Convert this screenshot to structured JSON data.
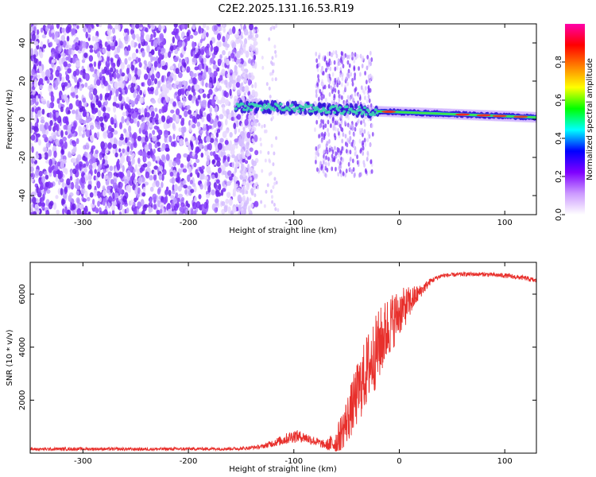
{
  "title": "C2E2.2025.131.16.53.R19",
  "colors": {
    "scatter_purple": "#7b2ff7",
    "snr_line": "#e8302c",
    "frame": "#000000"
  },
  "chart_data": [
    {
      "type": "heatmap",
      "xlabel": "Height of straight line (km)",
      "ylabel": "Frequency (Hz)",
      "xlim": [
        -350,
        130
      ],
      "ylim": [
        -50,
        50
      ],
      "x_ticks": [
        -300,
        -200,
        -100,
        0,
        100
      ],
      "x_tick_labels": [
        "-300",
        "-200",
        "-100",
        "0",
        "100"
      ],
      "y_ticks": [
        -40,
        -20,
        0,
        20,
        40
      ],
      "y_tick_labels": [
        "-40",
        "-20",
        "0",
        "20",
        "40"
      ],
      "colorbar": {
        "label": "Normalized spectral amplitude",
        "range": [
          0,
          1
        ],
        "ticks": [
          0.0,
          0.2,
          0.4,
          0.6,
          0.8
        ],
        "tick_labels": [
          "0.0",
          "0.2",
          "0.4",
          "0.6",
          "0.8"
        ],
        "colors": [
          "#ffffff",
          "#cc99ff",
          "#7f00ff",
          "#0000ff",
          "#00ffff",
          "#00ff00",
          "#ffff00",
          "#ff8000",
          "#ff0000",
          "#ff00aa"
        ]
      },
      "regions": [
        {
          "name": "noise_scatter",
          "x_range": [
            -350,
            -150
          ],
          "freq_range": [
            -50,
            50
          ],
          "amplitude": 0.1
        },
        {
          "name": "signal_track",
          "x_range": [
            -155,
            130
          ],
          "center_freq_start": 7,
          "center_freq_end": 1,
          "amplitude_peak": 0.9
        },
        {
          "name": "multipath_spread",
          "x_range": [
            -80,
            -25
          ],
          "freq_range": [
            -30,
            35
          ],
          "amplitude": 0.15
        }
      ]
    },
    {
      "type": "line",
      "xlabel": "Height of straight line (km)",
      "ylabel": "SNR (10 * v/v)",
      "xlim": [
        -350,
        130
      ],
      "ylim": [
        0,
        7200
      ],
      "x_ticks": [
        -300,
        -200,
        -100,
        0,
        100
      ],
      "x_tick_labels": [
        "-300",
        "-200",
        "-100",
        "0",
        "100"
      ],
      "y_ticks": [
        2000,
        4000,
        6000
      ],
      "y_tick_labels": [
        "2000",
        "4000",
        "6000"
      ],
      "series": [
        {
          "x": [
            -350,
            -300,
            -250,
            -200,
            -150,
            -130,
            -110,
            -100,
            -90,
            -80,
            -70,
            -60,
            -50,
            -40,
            -30,
            -20,
            -10,
            0,
            10,
            20,
            30,
            40,
            60,
            80,
            100,
            120,
            130
          ],
          "y": [
            150,
            160,
            150,
            160,
            170,
            250,
            500,
            650,
            600,
            450,
            300,
            400,
            1200,
            2200,
            3200,
            4000,
            4800,
            5300,
            5700,
            6100,
            6500,
            6700,
            6750,
            6750,
            6700,
            6600,
            6500
          ],
          "noise": [
            60,
            60,
            60,
            60,
            60,
            80,
            200,
            250,
            200,
            180,
            150,
            500,
            900,
            1200,
            1400,
            1400,
            1200,
            900,
            600,
            250,
            120,
            80,
            80,
            80,
            90,
            90,
            100
          ]
        }
      ]
    }
  ]
}
